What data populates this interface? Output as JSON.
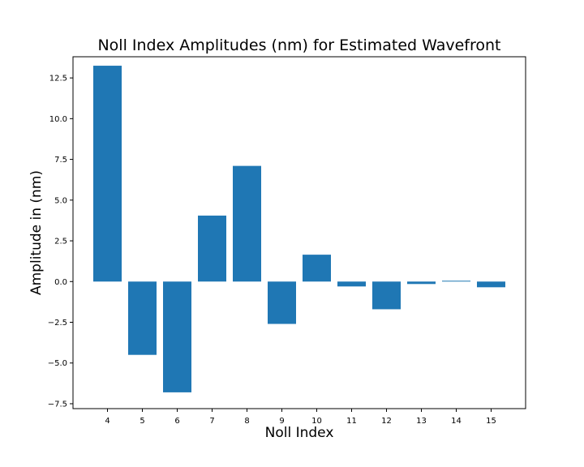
{
  "chart_data": {
    "type": "bar",
    "title": "Noll Index Amplitudes (nm) for Estimated Wavefront",
    "xlabel": "Noll Index",
    "ylabel": "Amplitude in (nm)",
    "categories": [
      "4",
      "5",
      "6",
      "7",
      "8",
      "9",
      "10",
      "11",
      "12",
      "13",
      "14",
      "15"
    ],
    "values": [
      13.25,
      -4.5,
      -6.8,
      4.05,
      7.1,
      -2.6,
      1.65,
      -0.3,
      -1.7,
      -0.15,
      0.05,
      -0.35
    ],
    "ylim": [
      -7.8,
      13.8
    ],
    "yticks": [
      -7.5,
      -5.0,
      -2.5,
      0.0,
      2.5,
      5.0,
      7.5,
      10.0,
      12.5
    ],
    "ytick_labels": [
      "−7.5",
      "−5.0",
      "−2.5",
      "0.0",
      "2.5",
      "5.0",
      "7.5",
      "10.0",
      "12.5"
    ],
    "grid": false,
    "bar_color": "#1f77b4"
  }
}
